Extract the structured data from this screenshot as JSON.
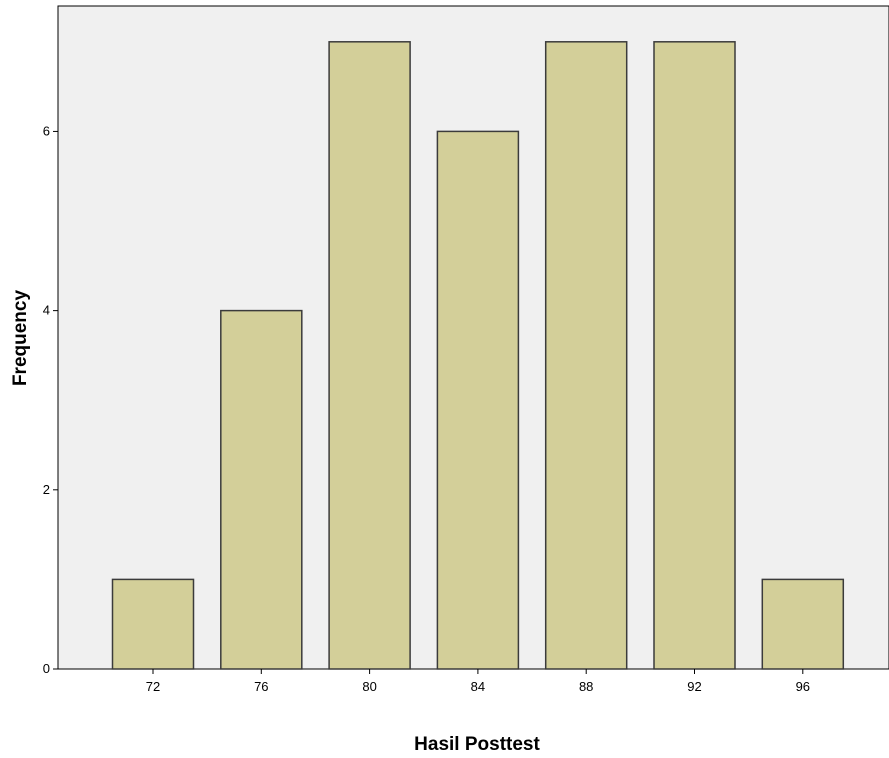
{
  "chart_data": {
    "type": "bar",
    "title": "",
    "xlabel": "Hasil Posttest",
    "ylabel": "Frequency",
    "categories": [
      "72",
      "76",
      "80",
      "84",
      "88",
      "92",
      "96"
    ],
    "values": [
      1,
      4,
      7,
      6,
      7,
      7,
      1
    ],
    "ylim": [
      0,
      7.4
    ],
    "yticks": [
      "0",
      "2",
      "4",
      "6"
    ],
    "grid": false,
    "legend": "none",
    "colors": {
      "bar_fill": "#d3cf99",
      "bar_stroke": "#3b3b3b",
      "plot_background": "#f0f0f0",
      "axis": "#000000"
    }
  }
}
